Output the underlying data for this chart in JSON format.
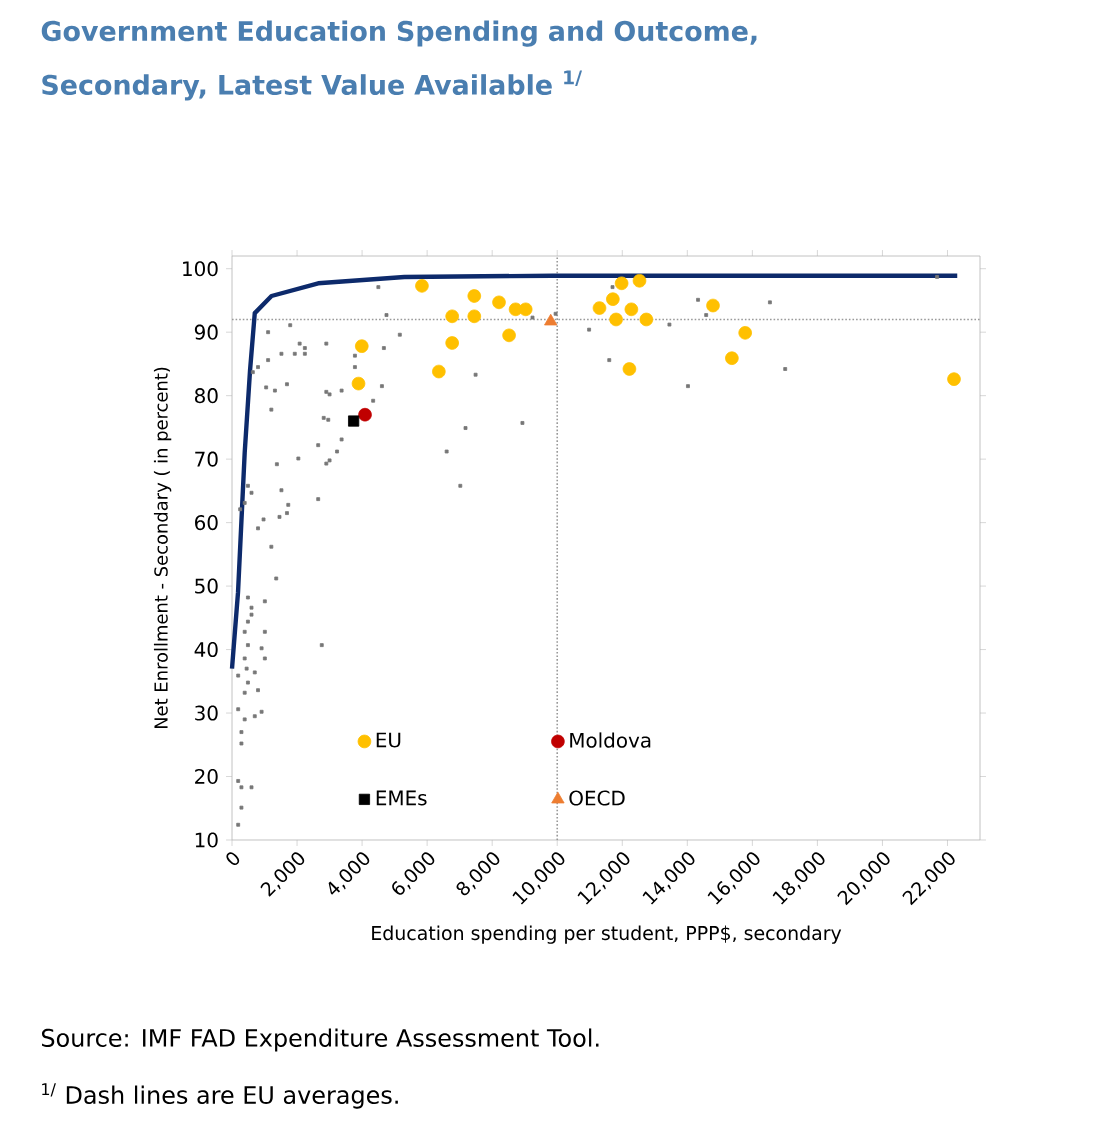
{
  "chart_data": {
    "type": "scatter",
    "title": "Government Education Spending and Outcome, Secondary, Latest Value Available $^{1/}$",
    "xlabel": "Education spending per student, PPP$, secondary",
    "ylabel": "Net Enrollment - Secondary ( in percent)",
    "annotations": [
      "Source: IMF FAD Expenditure Assessment Tool.",
      "$^{1/}$ Dash lines are EU averages."
    ],
    "xlim": [
      0,
      23000
    ],
    "ylim": [
      10,
      102
    ],
    "xticks": [
      0,
      {
        "value": 2000,
        "label": "2,000"
      },
      {
        "value": 4000,
        "label": "4,000"
      },
      {
        "value": 6000,
        "label": "6,000"
      },
      {
        "value": 8000,
        "label": "8,000"
      },
      {
        "value": 10000,
        "label": "10,000"
      },
      {
        "value": 12000,
        "label": "12,000"
      },
      {
        "value": 14000,
        "label": "14,000"
      },
      {
        "value": 16000,
        "label": "16,000"
      },
      {
        "value": 18000,
        "label": "18,000"
      },
      {
        "value": 20000,
        "label": "20,000"
      },
      {
        "value": 22000,
        "label": "22,000"
      }
    ],
    "yticks": [
      10,
      20,
      30,
      40,
      50,
      60,
      70,
      80,
      90,
      100
    ],
    "grid": false,
    "legend": "bottom",
    "ref_lines": [
      {
        "axis": "y",
        "value": 92,
        "color": "#999999",
        "line_style": "dotted"
      },
      {
        "axis": "x",
        "value": 10000,
        "color": "#999999",
        "line_style": "dotted"
      }
    ],
    "series": [
      {
        "marker": "square",
        "color": "#777777",
        "x": [
          4500,
          4750,
          1790,
          1110,
          2080,
          2240,
          2900,
          1520,
          1930,
          2240,
          4670,
          5160,
          3780,
          800,
          1110,
          3780,
          640,
          7490,
          1050,
          1320,
          1690,
          2900,
          3000,
          3370,
          4610,
          4340,
          1210,
          2820,
          2960,
          2650,
          3230,
          3370,
          7180,
          8930,
          6600,
          2040,
          1380,
          2900,
          3000,
          490,
          600,
          1520,
          390,
          1730,
          1690,
          2650,
          250,
          1460,
          970,
          800,
          1210,
          1360,
          7020,
          9950,
          10980,
          9240,
          490,
          600,
          600,
          490,
          1010,
          390,
          490,
          1010,
          910,
          390,
          1010,
          450,
          190,
          700,
          490,
          800,
          390,
          190,
          700,
          910,
          390,
          290,
          2760,
          290,
          190,
          290,
          600,
          290,
          190,
          11600,
          14020,
          17010,
          16540,
          14330,
          14580,
          13450,
          11700,
          21680
        ],
        "values": [
          97.1,
          92.7,
          91.1,
          90.0,
          88.2,
          87.5,
          88.2,
          86.6,
          86.6,
          86.6,
          87.5,
          89.6,
          86.3,
          84.5,
          85.6,
          84.5,
          83.7,
          83.3,
          81.3,
          80.8,
          81.8,
          80.6,
          80.2,
          80.8,
          81.5,
          79.2,
          77.8,
          76.5,
          76.2,
          72.2,
          71.2,
          73.1,
          74.9,
          75.7,
          71.2,
          70.1,
          69.2,
          69.3,
          69.8,
          65.8,
          64.7,
          65.1,
          63.1,
          62.8,
          61.5,
          63.7,
          62.1,
          60.9,
          60.5,
          59.1,
          56.2,
          51.2,
          65.8,
          92.9,
          90.4,
          92.3,
          48.2,
          46.6,
          45.5,
          44.4,
          47.6,
          42.8,
          40.7,
          42.8,
          40.2,
          38.6,
          38.6,
          37.0,
          35.9,
          36.4,
          34.8,
          33.6,
          33.2,
          30.6,
          29.5,
          30.2,
          29.0,
          27.0,
          40.7,
          25.2,
          19.3,
          18.3,
          18.3,
          15.1,
          12.4,
          85.6,
          81.5,
          84.2,
          94.7,
          95.1,
          92.7,
          91.2,
          97.1,
          98.7
        ]
      },
      {
        "type": "line",
        "marker": "none",
        "line_style": "solid",
        "color": "#0d2a6b",
        "x": [
          0,
          185,
          390,
          555,
          700,
          1215,
          2650,
          5300,
          9860,
          22300
        ],
        "values": [
          37,
          49,
          71,
          84,
          93,
          95.7,
          97.7,
          98.7,
          98.9,
          98.9
        ]
      },
      {
        "name": "EU",
        "marker": "circle",
        "color": "#ffc000",
        "x": [
          5840,
          7450,
          6770,
          7450,
          8210,
          8720,
          9030,
          8520,
          6770,
          6360,
          3990,
          3890,
          11300,
          11980,
          12530,
          11710,
          12280,
          11810,
          12740,
          14790,
          15780,
          15370,
          12220,
          22200
        ],
        "values": [
          97.3,
          95.7,
          92.5,
          92.5,
          94.7,
          93.6,
          93.6,
          89.5,
          88.3,
          83.8,
          87.8,
          81.9,
          93.8,
          97.7,
          98.1,
          95.2,
          93.6,
          92.0,
          92.0,
          94.2,
          89.9,
          85.9,
          84.2,
          82.6
        ]
      },
      {
        "name": "Moldova",
        "marker": "circle",
        "color": "#c00000",
        "x": [
          4090
        ],
        "values": [
          77.0
        ]
      },
      {
        "name": "EMEs",
        "marker": "square",
        "color": "#000000",
        "x": [
          3740
        ],
        "values": [
          76.0
        ]
      },
      {
        "name": "OECD",
        "marker": "triangle",
        "color": "#ed7d31",
        "x": [
          9800
        ],
        "values": [
          91.7
        ]
      }
    ]
  }
}
